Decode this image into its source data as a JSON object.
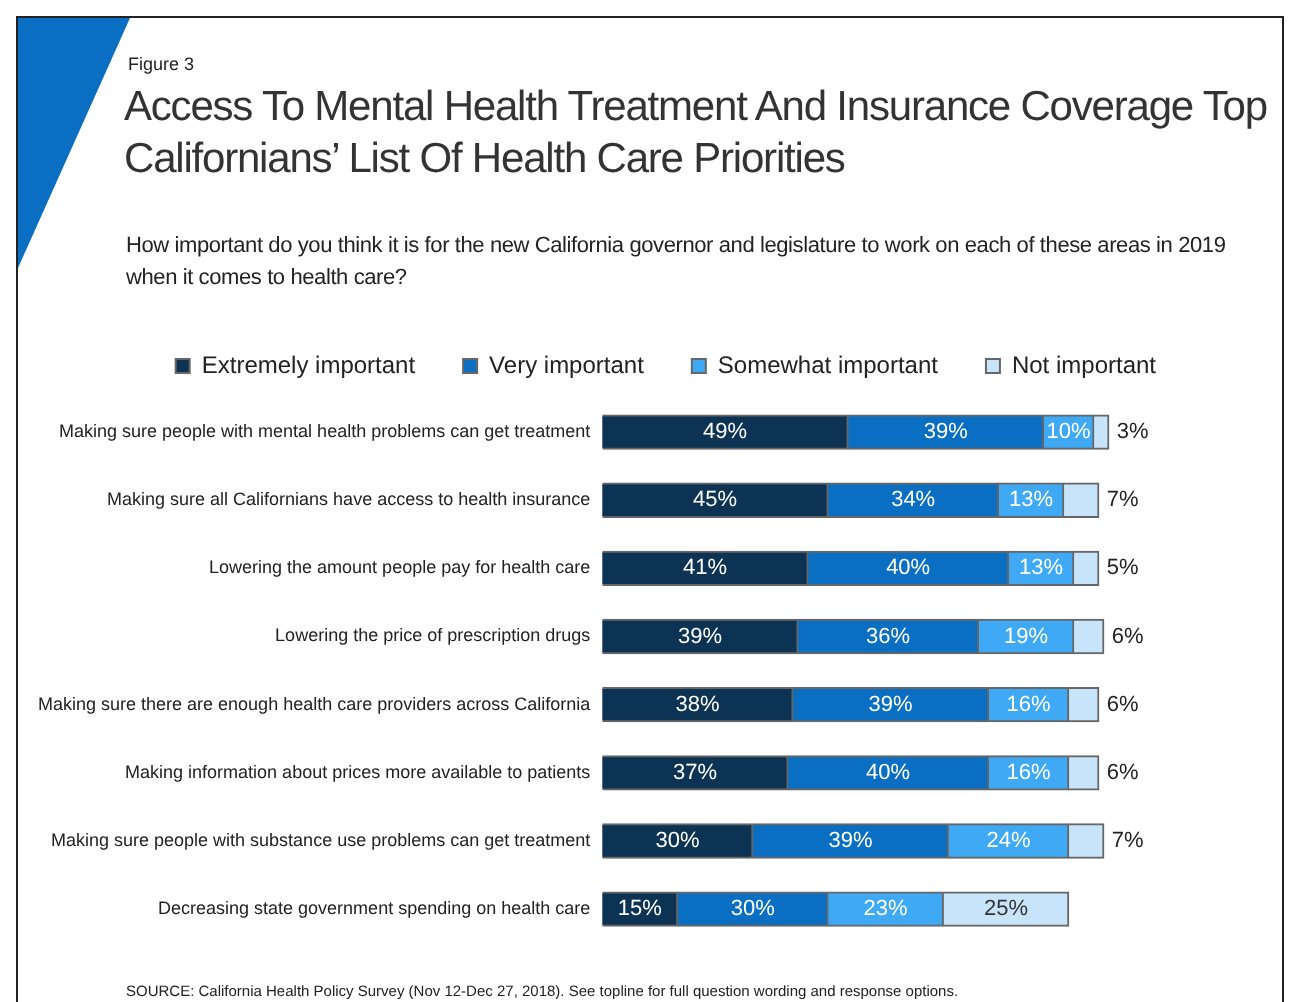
{
  "chart_data": {
    "type": "bar",
    "orientation": "horizontal",
    "stacked": true,
    "title": "Access To Mental Health Treatment And Insurance Coverage Top Californians’ List Of Health Care Priorities",
    "subtitle": "How important do you think it is for the new California governor and legislature to work on each of these areas in 2019 when it comes to health care?",
    "categories": [
      "Making sure people with mental health problems can get treatment",
      "Making sure all Californians have access to health insurance",
      "Lowering the amount people pay for health care",
      "Lowering the price of prescription drugs",
      "Making sure there are enough health care providers across California",
      "Making information about prices more available to patients",
      "Making sure people with substance use problems can get treatment",
      "Decreasing state government spending on health care"
    ],
    "series": [
      {
        "name": "Extremely important",
        "color": "#0d3354",
        "values": [
          49,
          45,
          41,
          39,
          38,
          37,
          30,
          15
        ],
        "value_labels": [
          "49%",
          "45%",
          "41%",
          "39%",
          "38%",
          "37%",
          "30%",
          "15%"
        ]
      },
      {
        "name": "Very important",
        "color": "#0a6fc2",
        "values": [
          39,
          34,
          40,
          36,
          39,
          40,
          39,
          30
        ],
        "value_labels": [
          "39%",
          "34%",
          "40%",
          "36%",
          "39%",
          "40%",
          "39%",
          "30%"
        ]
      },
      {
        "name": "Somewhat important",
        "color": "#3fa9f5",
        "values": [
          10,
          13,
          13,
          19,
          16,
          16,
          24,
          23
        ],
        "value_labels": [
          "10%",
          "13%",
          "13%",
          "19%",
          "16%",
          "16%",
          "24%",
          "23%"
        ]
      },
      {
        "name": "Not important",
        "color": "#c8e4fa",
        "values": [
          3,
          7,
          5,
          6,
          6,
          6,
          7,
          25
        ],
        "value_labels": [
          "3%",
          "7%",
          "5%",
          "6%",
          "6%",
          "6%",
          "7%",
          "25%"
        ]
      }
    ],
    "legend": "top",
    "grid": false,
    "tick_labels": "y",
    "annotations": [
      "Figure 3",
      "SOURCE: California Health Policy Survey (Nov 12-Dec 27, 2018). See topline for full question wording and response options."
    ]
  }
}
